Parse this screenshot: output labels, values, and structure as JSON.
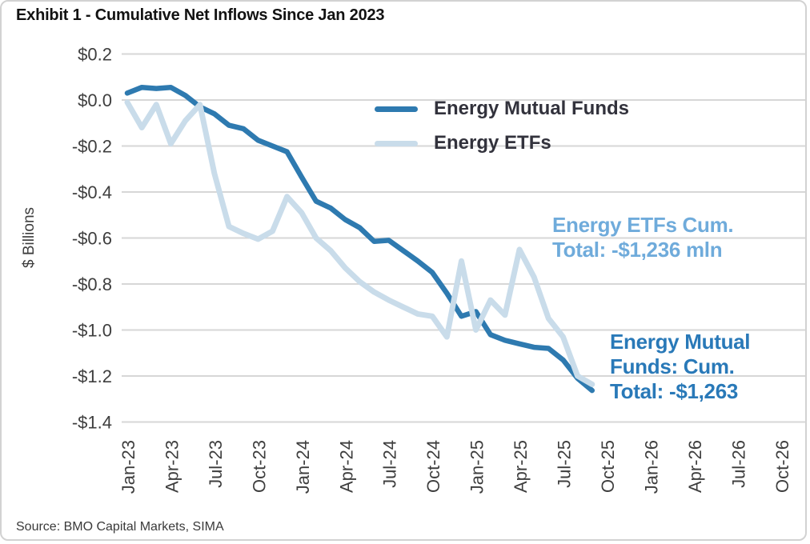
{
  "title": "Exhibit 1 - Cumulative Net Inflows Since Jan 2023",
  "source": "Source: BMO Capital Markets, SIMA",
  "y_axis_title": "$ Billions",
  "legend": {
    "items": [
      {
        "label": "Energy Mutual Funds",
        "color": "#2e7ab0"
      },
      {
        "label": "Energy ETFs",
        "color": "#c9dcea"
      }
    ]
  },
  "annotations": {
    "etfs": {
      "text": "Energy ETFs Cum.\nTotal: -$1,236 mln",
      "color": "#6fabdb"
    },
    "mutual_funds": {
      "text": "Energy Mutual\nFunds: Cum.\nTotal: -$1,263",
      "color": "#2979b8"
    }
  },
  "chart_data": {
    "type": "line",
    "title": "Exhibit 1 - Cumulative Net Inflows Since Jan 2023",
    "ylabel": "$ Billions",
    "ylim": [
      -1.4,
      0.2
    ],
    "y_tick_labels": [
      "$0.2",
      "$0.0",
      "-$0.2",
      "-$0.4",
      "-$0.6",
      "-$0.8",
      "-$1.0",
      "-$1.2",
      "-$1.4"
    ],
    "y_tick_values": [
      0.2,
      0.0,
      -0.2,
      -0.4,
      -0.6,
      -0.8,
      -1.0,
      -1.2,
      -1.4
    ],
    "x_tick_labels": [
      "Jan-23",
      "Apr-23",
      "Jul-23",
      "Oct-23",
      "Jan-24",
      "Apr-24",
      "Jul-24",
      "Oct-24",
      "Jan-25",
      "Apr-25",
      "Jul-25",
      "Oct-25",
      "Jan-26",
      "Apr-26",
      "Jul-26",
      "Oct-26"
    ],
    "x_tick_month_indices": [
      0,
      3,
      6,
      9,
      12,
      15,
      18,
      21,
      24,
      27,
      30,
      33,
      36,
      39,
      42,
      45
    ],
    "grid": "horizontal",
    "legend_position": "inside-top-center",
    "months": [
      "Jan-23",
      "Feb-23",
      "Mar-23",
      "Apr-23",
      "May-23",
      "Jun-23",
      "Jul-23",
      "Aug-23",
      "Sep-23",
      "Oct-23",
      "Nov-23",
      "Dec-23",
      "Jan-24",
      "Feb-24",
      "Mar-24",
      "Apr-24",
      "May-24",
      "Jun-24",
      "Jul-24",
      "Aug-24",
      "Sep-24",
      "Oct-24",
      "Nov-24",
      "Dec-24",
      "Jan-25",
      "Feb-25",
      "Mar-25",
      "Apr-25",
      "May-25",
      "Jun-25",
      "Jul-25",
      "Aug-25",
      "Sep-25"
    ],
    "series": [
      {
        "name": "Energy Mutual Funds",
        "color": "#2e7ab0",
        "cumulative_total_mln": -1263,
        "values": [
          0.03,
          0.055,
          0.05,
          0.055,
          0.02,
          -0.03,
          -0.06,
          -0.11,
          -0.125,
          -0.175,
          -0.2,
          -0.225,
          -0.335,
          -0.44,
          -0.47,
          -0.52,
          -0.555,
          -0.615,
          -0.61,
          -0.655,
          -0.7,
          -0.75,
          -0.84,
          -0.94,
          -0.92,
          -1.02,
          -1.045,
          -1.06,
          -1.075,
          -1.08,
          -1.13,
          -1.21,
          -1.263
        ]
      },
      {
        "name": "Energy ETFs",
        "color": "#c9dcea",
        "cumulative_total_mln": -1236,
        "values": [
          -0.01,
          -0.12,
          -0.02,
          -0.19,
          -0.09,
          -0.02,
          -0.32,
          -0.55,
          -0.58,
          -0.605,
          -0.57,
          -0.42,
          -0.49,
          -0.6,
          -0.655,
          -0.73,
          -0.79,
          -0.835,
          -0.87,
          -0.9,
          -0.93,
          -0.94,
          -1.03,
          -0.7,
          -1.0,
          -0.87,
          -0.935,
          -0.65,
          -0.77,
          -0.95,
          -1.03,
          -1.2,
          -1.236
        ]
      }
    ]
  }
}
